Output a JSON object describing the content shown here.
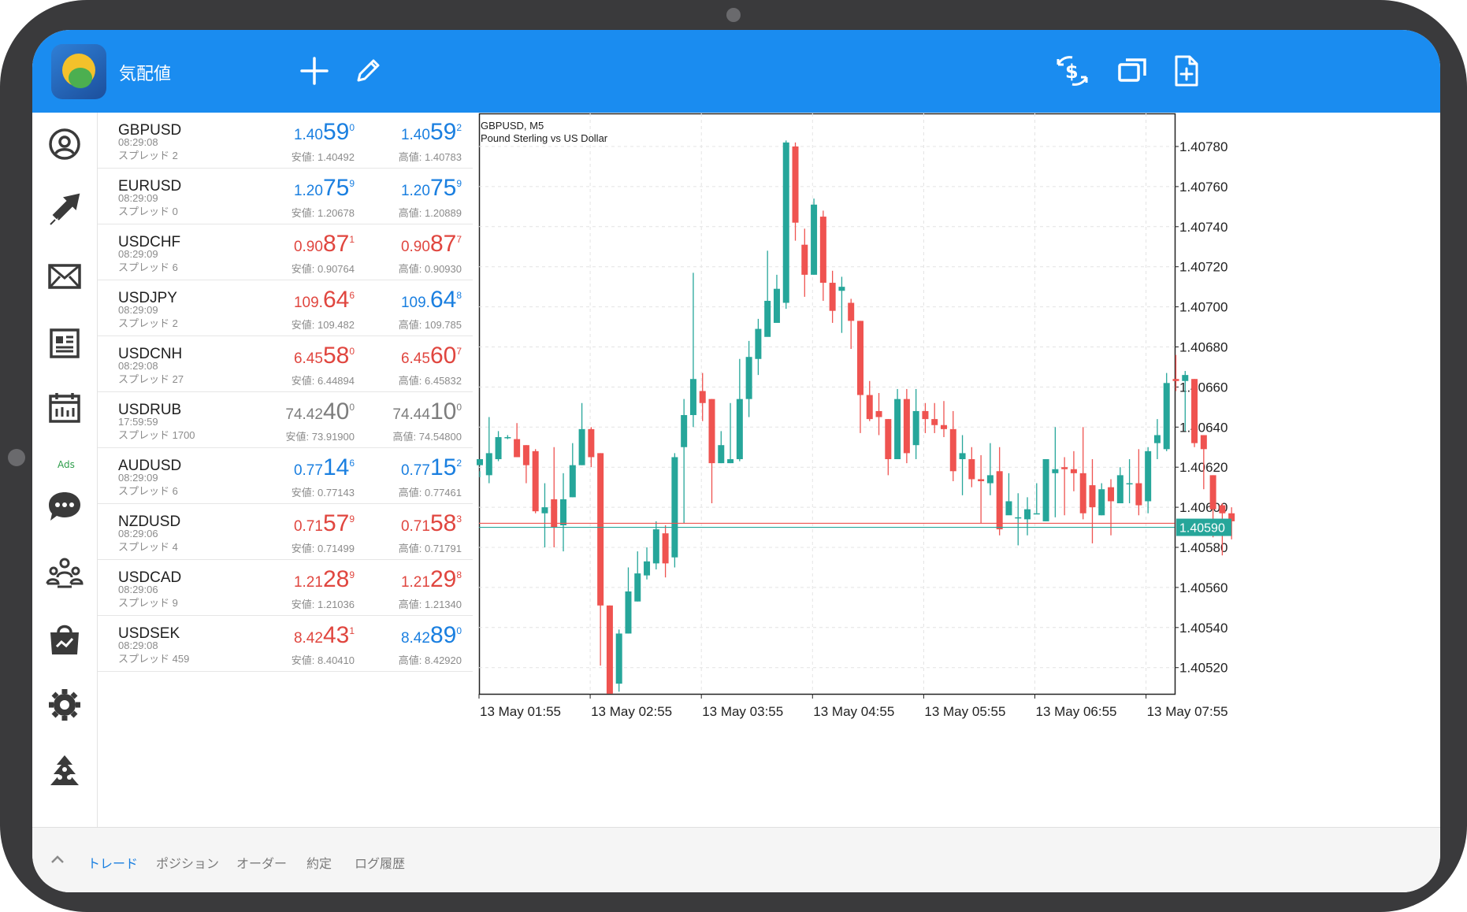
{
  "header": {
    "title": "気配値",
    "icons": [
      "plus-icon",
      "pencil-icon",
      "currency-exchange-icon",
      "windows-icon",
      "new-document-icon"
    ]
  },
  "nav": {
    "ads_label": "Ads",
    "icons": [
      "account-icon",
      "trade-icon",
      "mail-icon",
      "news-icon",
      "calendar-icon",
      "chat-icon",
      "community-icon",
      "market-icon",
      "settings-icon",
      "signals-icon"
    ]
  },
  "quotes": [
    {
      "symbol": "GBPUSD",
      "time": "08:29:08",
      "spread": "スプレッド 2",
      "bid": {
        "pre": "1.40",
        "big": "59",
        "sup": "0",
        "color": "blue"
      },
      "ask": {
        "pre": "1.40",
        "big": "59",
        "sup": "2",
        "color": "blue"
      },
      "low": "安値: 1.40492",
      "high": "高値: 1.40783"
    },
    {
      "symbol": "EURUSD",
      "time": "08:29:09",
      "spread": "スプレッド 0",
      "bid": {
        "pre": "1.20",
        "big": "75",
        "sup": "9",
        "color": "blue"
      },
      "ask": {
        "pre": "1.20",
        "big": "75",
        "sup": "9",
        "color": "blue"
      },
      "low": "安値: 1.20678",
      "high": "高値: 1.20889"
    },
    {
      "symbol": "USDCHF",
      "time": "08:29:09",
      "spread": "スプレッド 6",
      "bid": {
        "pre": "0.90",
        "big": "87",
        "sup": "1",
        "color": "red"
      },
      "ask": {
        "pre": "0.90",
        "big": "87",
        "sup": "7",
        "color": "red"
      },
      "low": "安値: 0.90764",
      "high": "高値: 0.90930"
    },
    {
      "symbol": "USDJPY",
      "time": "08:29:09",
      "spread": "スプレッド 2",
      "bid": {
        "pre": "109.",
        "big": "64",
        "sup": "6",
        "color": "red"
      },
      "ask": {
        "pre": "109.",
        "big": "64",
        "sup": "8",
        "color": "blue"
      },
      "low": "安値: 109.482",
      "high": "高値: 109.785"
    },
    {
      "symbol": "USDCNH",
      "time": "08:29:08",
      "spread": "スプレッド 27",
      "bid": {
        "pre": "6.45",
        "big": "58",
        "sup": "0",
        "color": "red"
      },
      "ask": {
        "pre": "6.45",
        "big": "60",
        "sup": "7",
        "color": "red"
      },
      "low": "安値: 6.44894",
      "high": "高値: 6.45832"
    },
    {
      "symbol": "USDRUB",
      "time": "17:59:59",
      "spread": "スプレッド 1700",
      "bid": {
        "pre": "74.42",
        "big": "40",
        "sup": "0",
        "color": "grey"
      },
      "ask": {
        "pre": "74.44",
        "big": "10",
        "sup": "0",
        "color": "grey"
      },
      "low": "安値: 73.91900",
      "high": "高値: 74.54800"
    },
    {
      "symbol": "AUDUSD",
      "time": "08:29:09",
      "spread": "スプレッド 6",
      "bid": {
        "pre": "0.77",
        "big": "14",
        "sup": "6",
        "color": "blue"
      },
      "ask": {
        "pre": "0.77",
        "big": "15",
        "sup": "2",
        "color": "blue"
      },
      "low": "安値: 0.77143",
      "high": "高値: 0.77461"
    },
    {
      "symbol": "NZDUSD",
      "time": "08:29:06",
      "spread": "スプレッド 4",
      "bid": {
        "pre": "0.71",
        "big": "57",
        "sup": "9",
        "color": "red"
      },
      "ask": {
        "pre": "0.71",
        "big": "58",
        "sup": "3",
        "color": "red"
      },
      "low": "安値: 0.71499",
      "high": "高値: 0.71791"
    },
    {
      "symbol": "USDCAD",
      "time": "08:29:06",
      "spread": "スプレッド 9",
      "bid": {
        "pre": "1.21",
        "big": "28",
        "sup": "9",
        "color": "red"
      },
      "ask": {
        "pre": "1.21",
        "big": "29",
        "sup": "8",
        "color": "red"
      },
      "low": "安値: 1.21036",
      "high": "高値: 1.21340"
    },
    {
      "symbol": "USDSEK",
      "time": "08:29:08",
      "spread": "スプレッド 459",
      "bid": {
        "pre": "8.42",
        "big": "43",
        "sup": "1",
        "color": "red"
      },
      "ask": {
        "pre": "8.42",
        "big": "89",
        "sup": "0",
        "color": "blue"
      },
      "low": "安値: 8.40410",
      "high": "高値: 8.42920"
    }
  ],
  "chart": {
    "symbol_tf": "GBPUSD, M5",
    "description": "Pound Sterling vs US Dollar",
    "price_labels": [
      "1.40780",
      "1.40760",
      "1.40740",
      "1.40720",
      "1.40700",
      "1.40680",
      "1.40660",
      "1.40640",
      "1.40620",
      "1.40600",
      "1.40580",
      "1.40560",
      "1.40540",
      "1.40520"
    ],
    "time_labels": [
      "13 May 01:55",
      "13 May 02:55",
      "13 May 03:55",
      "13 May 04:55",
      "13 May 05:55",
      "13 May 06:55",
      "13 May 07:55"
    ],
    "current_price": "1.40590",
    "ask_price": 1.40592,
    "colors": {
      "up": "#26a69a",
      "down": "#ef5350",
      "grid": "#e4e4e4",
      "bid_line": "#26a69a",
      "ask_line": "#ef5350"
    }
  },
  "chart_data": {
    "type": "candlestick",
    "title": "GBPUSD, M5",
    "ylim": [
      1.4051,
      1.40789
    ],
    "ohlc": [
      [
        1.40621,
        1.40624,
        1.40618,
        1.40615
      ],
      [
        1.40616,
        1.40627,
        1.40645,
        1.40612
      ],
      [
        1.40624,
        1.40635,
        1.40638,
        1.40623
      ],
      [
        1.40635,
        1.40635,
        1.40636,
        1.40634
      ],
      [
        1.40634,
        1.40625,
        1.40642,
        1.40625
      ],
      [
        1.40631,
        1.40621,
        1.40631,
        1.40612
      ],
      [
        1.40628,
        1.40598,
        1.40629,
        1.40597
      ],
      [
        1.40597,
        1.406,
        1.40612,
        1.4058
      ],
      [
        1.40604,
        1.4059,
        1.4063,
        1.4058
      ],
      [
        1.40591,
        1.40604,
        1.40617,
        1.40578
      ],
      [
        1.40605,
        1.40621,
        1.40632,
        1.40605
      ],
      [
        1.40621,
        1.40639,
        1.40652,
        1.40621
      ],
      [
        1.40639,
        1.40625,
        1.4064,
        1.4062
      ],
      [
        1.40627,
        1.40551,
        1.40627,
        1.40521
      ],
      [
        1.40551,
        1.40507,
        1.40551,
        1.40507
      ],
      [
        1.40512,
        1.40537,
        1.40539,
        1.40508
      ],
      [
        1.40537,
        1.40558,
        1.4057,
        1.40537
      ],
      [
        1.40553,
        1.40567,
        1.40578,
        1.40553
      ],
      [
        1.40566,
        1.40573,
        1.4058,
        1.40564
      ],
      [
        1.40572,
        1.40589,
        1.40593,
        1.40569
      ],
      [
        1.40587,
        1.40572,
        1.40591,
        1.40565
      ],
      [
        1.40575,
        1.40625,
        1.40627,
        1.4057
      ],
      [
        1.4063,
        1.40646,
        1.40654,
        1.40592
      ],
      [
        1.40646,
        1.40664,
        1.40717,
        1.4064
      ],
      [
        1.40658,
        1.40652,
        1.40667,
        1.40643
      ],
      [
        1.40654,
        1.40622,
        1.40654,
        1.40602
      ],
      [
        1.40622,
        1.40631,
        1.40638,
        1.40622
      ],
      [
        1.40622,
        1.40624,
        1.40652,
        1.40622
      ],
      [
        1.40624,
        1.40654,
        1.40674,
        1.40623
      ],
      [
        1.40654,
        1.40675,
        1.40683,
        1.40645
      ],
      [
        1.40674,
        1.40689,
        1.40694,
        1.40666
      ],
      [
        1.40685,
        1.40703,
        1.40728,
        1.40689
      ],
      [
        1.40692,
        1.40709,
        1.40716,
        1.40694
      ],
      [
        1.40702,
        1.40782,
        1.40783,
        1.40699
      ],
      [
        1.4078,
        1.40742,
        1.40782,
        1.40733
      ],
      [
        1.40731,
        1.40716,
        1.40739,
        1.40705
      ],
      [
        1.40716,
        1.40751,
        1.40754,
        1.40716
      ],
      [
        1.40745,
        1.40712,
        1.40748,
        1.40703
      ],
      [
        1.40712,
        1.40698,
        1.40718,
        1.40692
      ],
      [
        1.40708,
        1.4071,
        1.40715,
        1.40687
      ],
      [
        1.40702,
        1.40693,
        1.40704,
        1.40679
      ],
      [
        1.40693,
        1.40656,
        1.40693,
        1.40637
      ],
      [
        1.40656,
        1.40644,
        1.40663,
        1.40643
      ],
      [
        1.40648,
        1.40645,
        1.40657,
        1.40636
      ],
      [
        1.40644,
        1.40624,
        1.40644,
        1.40616
      ],
      [
        1.40624,
        1.40654,
        1.40659,
        1.40627
      ],
      [
        1.40654,
        1.40627,
        1.40659,
        1.40622
      ],
      [
        1.40631,
        1.40648,
        1.40659,
        1.40624
      ],
      [
        1.40648,
        1.40644,
        1.40652,
        1.40637
      ],
      [
        1.40644,
        1.40641,
        1.40652,
        1.40637
      ],
      [
        1.40641,
        1.40639,
        1.40653,
        1.40635
      ],
      [
        1.40639,
        1.40618,
        1.40648,
        1.40613
      ],
      [
        1.40624,
        1.40627,
        1.40636,
        1.40606
      ],
      [
        1.40624,
        1.40614,
        1.4063,
        1.4061
      ],
      [
        1.40614,
        1.40613,
        1.40626,
        1.40592
      ],
      [
        1.40612,
        1.40616,
        1.40632,
        1.40606
      ],
      [
        1.40618,
        1.40589,
        1.4063,
        1.40586
      ],
      [
        1.40596,
        1.40603,
        1.40617,
        1.40598
      ],
      [
        1.40595,
        1.40595,
        1.40607,
        1.40581
      ],
      [
        1.40594,
        1.40599,
        1.40605,
        1.40586
      ],
      [
        1.40597,
        1.40597,
        1.40612,
        1.40597
      ],
      [
        1.40593,
        1.40624,
        1.40624,
        1.40593
      ],
      [
        1.40617,
        1.40619,
        1.4064,
        1.40595
      ],
      [
        1.4062,
        1.40619,
        1.40625,
        1.40596
      ],
      [
        1.40619,
        1.40617,
        1.40628,
        1.40608
      ],
      [
        1.40617,
        1.40597,
        1.4064,
        1.40594
      ],
      [
        1.40611,
        1.406,
        1.40624,
        1.40582
      ],
      [
        1.40596,
        1.40609,
        1.40612,
        1.40596
      ],
      [
        1.4061,
        1.40603,
        1.40614,
        1.40586
      ],
      [
        1.40602,
        1.40616,
        1.4062,
        1.40602
      ],
      [
        1.40612,
        1.40612,
        1.40624,
        1.40602
      ],
      [
        1.40612,
        1.40601,
        1.40629,
        1.40596
      ],
      [
        1.40603,
        1.40628,
        1.4063,
        1.40597
      ],
      [
        1.40632,
        1.40636,
        1.40644,
        1.40624
      ],
      [
        1.40629,
        1.40662,
        1.40667,
        1.40628
      ],
      [
        1.40664,
        1.40663,
        1.40676,
        1.40658
      ],
      [
        1.40663,
        1.40666,
        1.40668,
        1.40638
      ],
      [
        1.40664,
        1.40632,
        1.40664,
        1.4063
      ],
      [
        1.40636,
        1.40629,
        1.40636,
        1.40609
      ],
      [
        1.40616,
        1.40599,
        1.40616,
        1.40585
      ],
      [
        1.40601,
        1.40597,
        1.40602,
        1.40576
      ],
      [
        1.40597,
        1.40593,
        1.406,
        1.40584
      ]
    ]
  },
  "bottom": {
    "tabs": [
      "トレード",
      "ポジション",
      "オーダー",
      "約定",
      "ログ履歴"
    ],
    "active_tab": 0
  }
}
